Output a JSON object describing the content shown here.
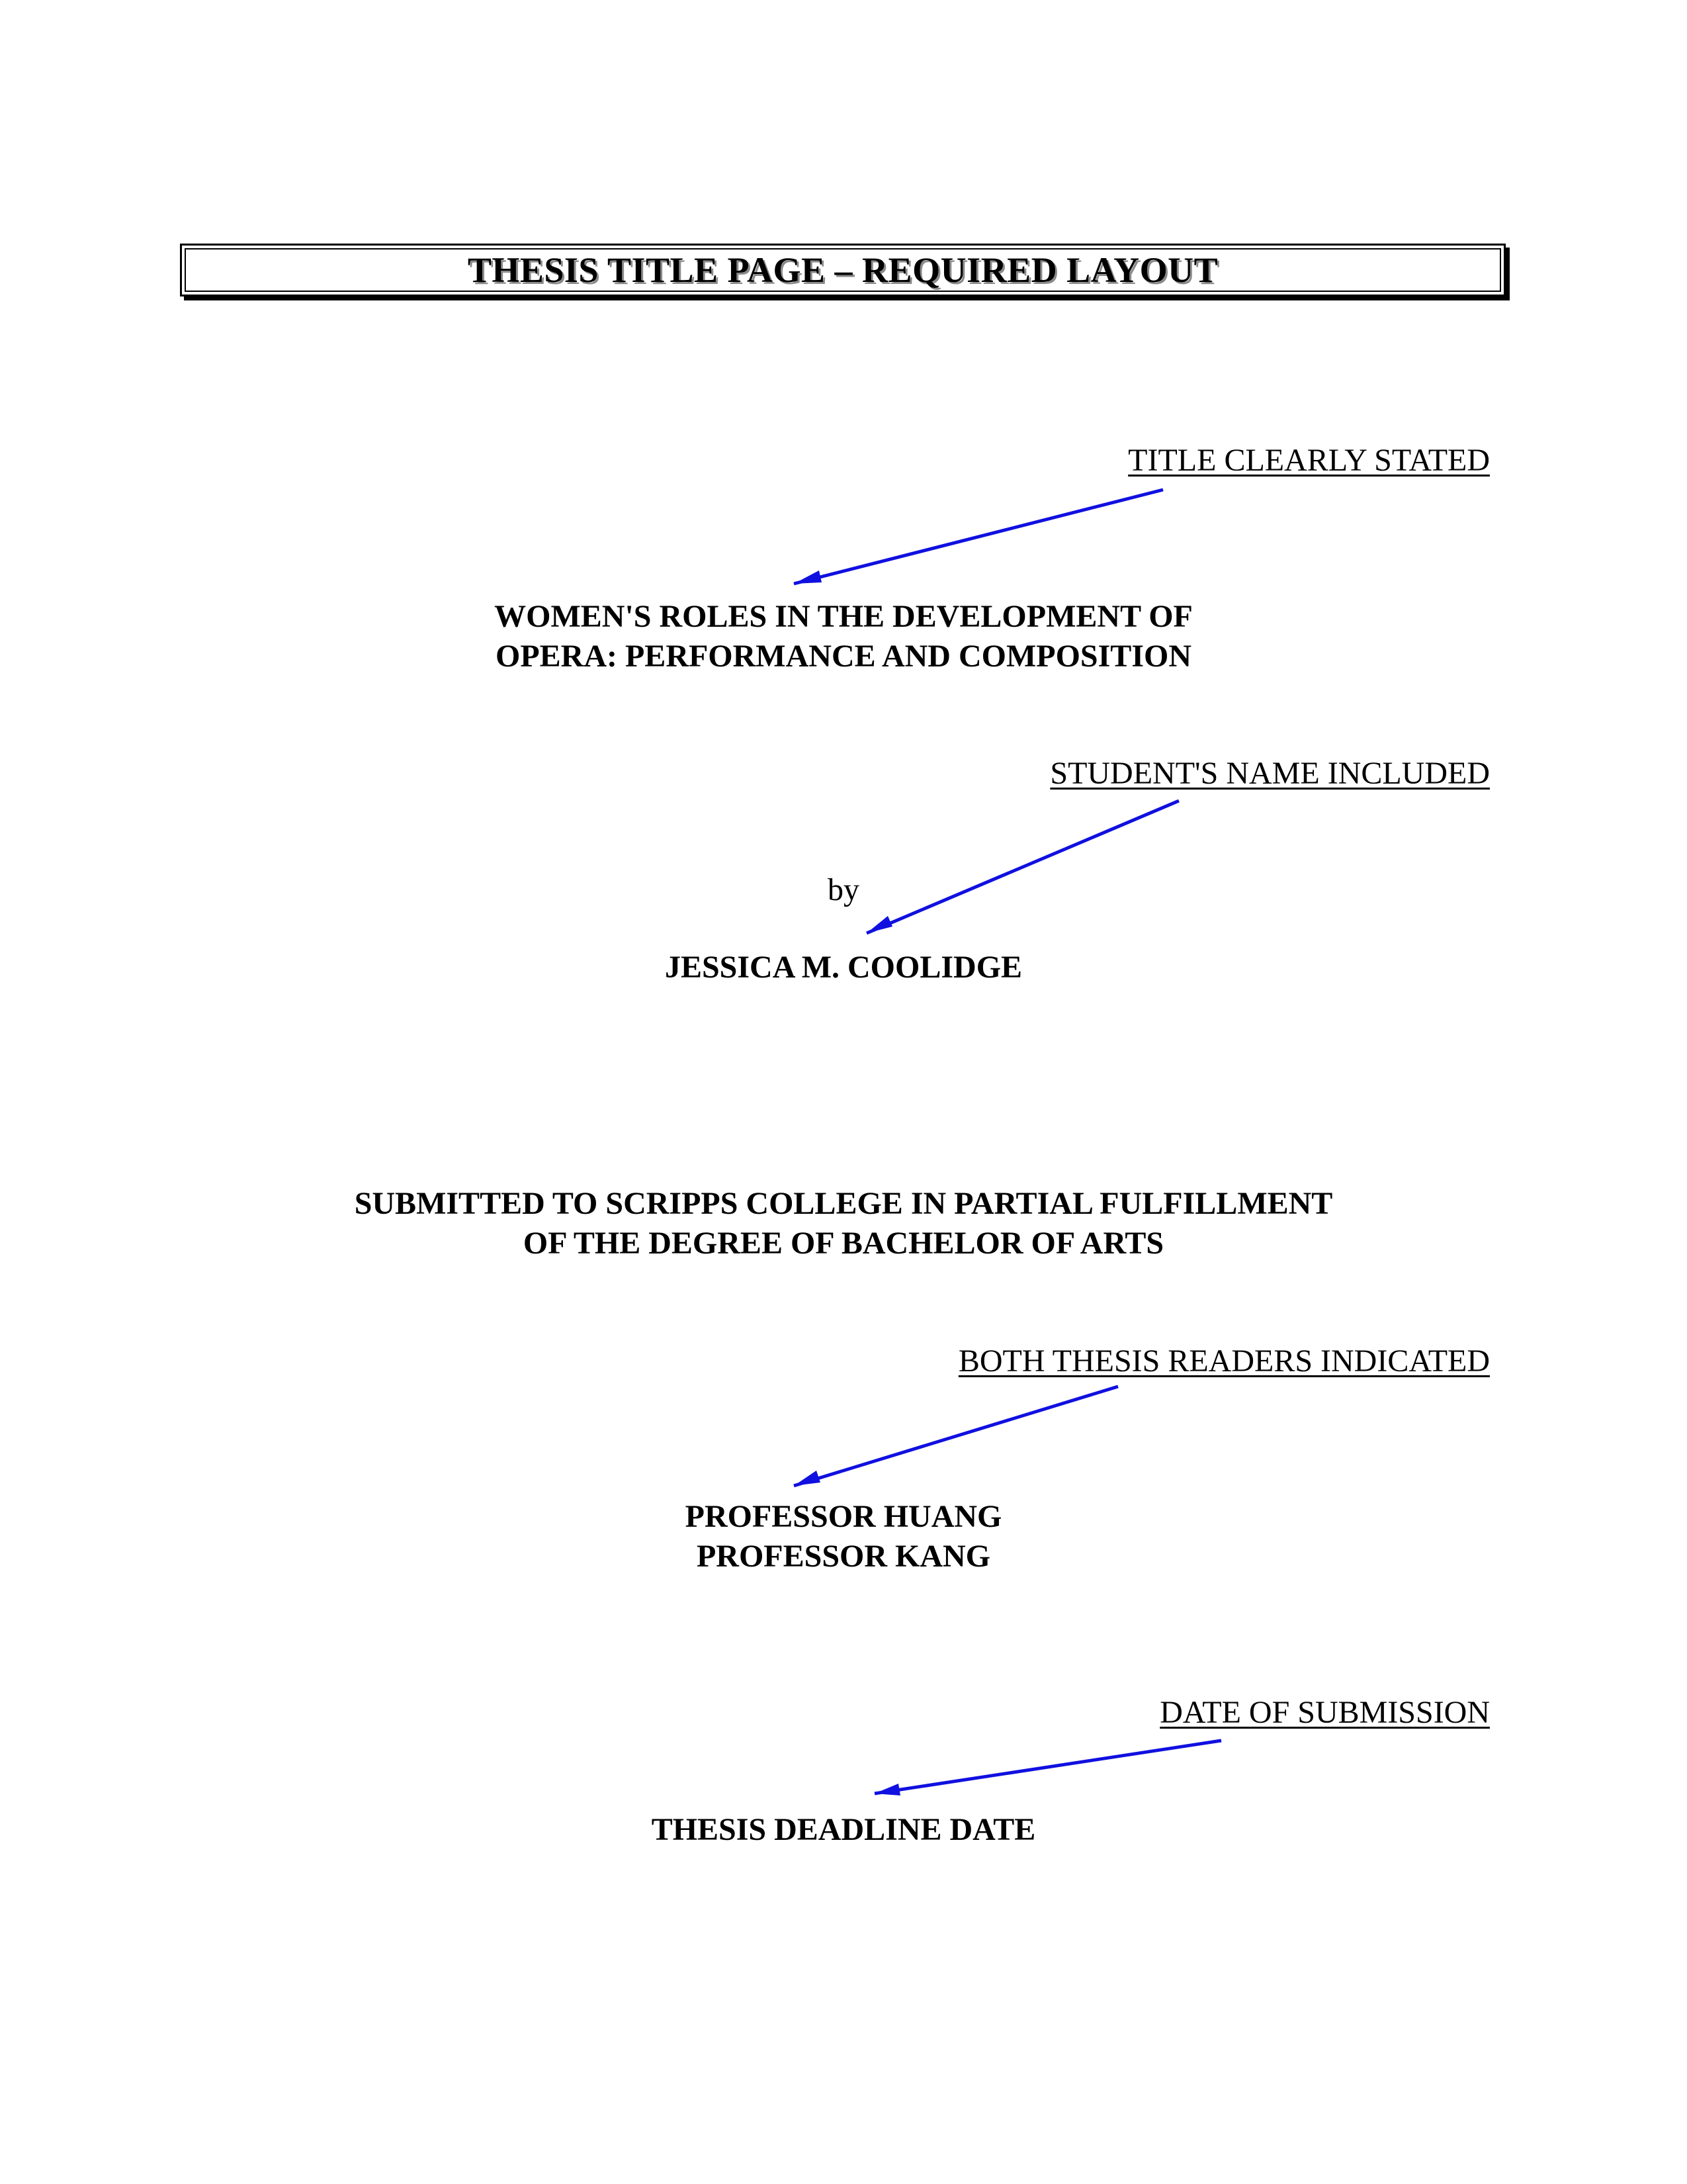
{
  "header": {
    "title": "THESIS TITLE PAGE – REQUIRED LAYOUT"
  },
  "annotations": {
    "title": "TITLE CLEARLY STATED",
    "student_name": "STUDENT'S NAME INCLUDED",
    "readers": "BOTH THESIS READERS INDICATED",
    "date": "DATE OF SUBMISSION"
  },
  "thesis": {
    "title_line1": "WOMEN'S ROLES IN THE DEVELOPMENT OF",
    "title_line2": "OPERA:  PERFORMANCE AND COMPOSITION",
    "by": "by",
    "author": "JESSICA M. COOLIDGE",
    "submission_line1": "SUBMITTED TO SCRIPPS COLLEGE IN PARTIAL FULFILLMENT",
    "submission_line2": "OF THE DEGREE OF BACHELOR OF ARTS",
    "reader1": "PROFESSOR HUANG",
    "reader2": "PROFESSOR KANG",
    "date": "THESIS DEADLINE DATE"
  },
  "colors": {
    "arrow": "#1010e0",
    "text": "#000000"
  }
}
